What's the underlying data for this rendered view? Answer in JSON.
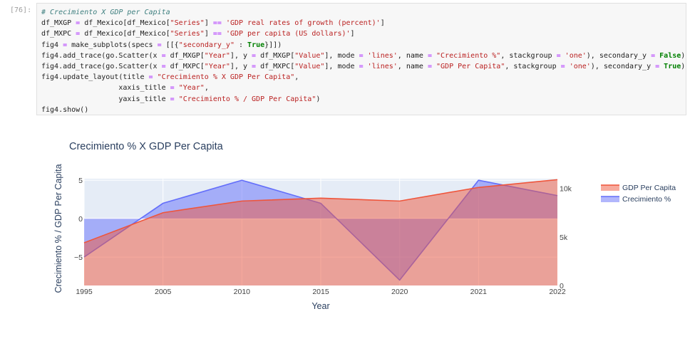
{
  "cell": {
    "prompt": "[76]:",
    "lines": [
      [
        [
          "cm",
          "# Crecimiento X GDP per Capita"
        ]
      ],
      [
        [
          "t",
          "df_MXGP "
        ],
        [
          "o",
          "="
        ],
        [
          "t",
          " df_Mexico[df_Mexico["
        ],
        [
          "s",
          "\"Series\""
        ],
        [
          "t",
          "] "
        ],
        [
          "o",
          "=="
        ],
        [
          "t",
          " "
        ],
        [
          "s",
          "'GDP real rates of growth (percent)'"
        ],
        [
          "t",
          "]"
        ]
      ],
      [
        [
          "t",
          "df_MXPC "
        ],
        [
          "o",
          "="
        ],
        [
          "t",
          " df_Mexico[df_Mexico["
        ],
        [
          "s",
          "\"Series\""
        ],
        [
          "t",
          "] "
        ],
        [
          "o",
          "=="
        ],
        [
          "t",
          " "
        ],
        [
          "s",
          "'GDP per capita (US dollars)'"
        ],
        [
          "t",
          "]"
        ]
      ],
      [
        [
          "t",
          "fig4 "
        ],
        [
          "o",
          "="
        ],
        [
          "t",
          " make_subplots(specs "
        ],
        [
          "o",
          "="
        ],
        [
          "t",
          " [[{"
        ],
        [
          "s",
          "\"secondary_y\""
        ],
        [
          "t",
          " : "
        ],
        [
          "k",
          "True"
        ],
        [
          "t",
          "}]])"
        ]
      ],
      [
        [
          "t",
          "fig4.add_trace(go.Scatter(x "
        ],
        [
          "o",
          "="
        ],
        [
          "t",
          " df_MXGP["
        ],
        [
          "s",
          "\"Year\""
        ],
        [
          "t",
          "], y "
        ],
        [
          "o",
          "="
        ],
        [
          "t",
          " df_MXGP["
        ],
        [
          "s",
          "\"Value\""
        ],
        [
          "t",
          "], mode "
        ],
        [
          "o",
          "="
        ],
        [
          "t",
          " "
        ],
        [
          "s",
          "'lines'"
        ],
        [
          "t",
          ", name "
        ],
        [
          "o",
          "="
        ],
        [
          "t",
          " "
        ],
        [
          "s",
          "\"Crecimiento %\""
        ],
        [
          "t",
          ", stackgroup "
        ],
        [
          "o",
          "="
        ],
        [
          "t",
          " "
        ],
        [
          "s",
          "'one'"
        ],
        [
          "t",
          "), secondary_y "
        ],
        [
          "o",
          "="
        ],
        [
          "t",
          " "
        ],
        [
          "k",
          "False"
        ],
        [
          "t",
          ")"
        ]
      ],
      [
        [
          "t",
          "fig4.add_trace(go.Scatter(x "
        ],
        [
          "o",
          "="
        ],
        [
          "t",
          " df_MXPC["
        ],
        [
          "s",
          "\"Year\""
        ],
        [
          "t",
          "], y "
        ],
        [
          "o",
          "="
        ],
        [
          "t",
          " df_MXPC["
        ],
        [
          "s",
          "\"Value\""
        ],
        [
          "t",
          "], mode "
        ],
        [
          "o",
          "="
        ],
        [
          "t",
          " "
        ],
        [
          "s",
          "'lines'"
        ],
        [
          "t",
          ", name "
        ],
        [
          "o",
          "="
        ],
        [
          "t",
          " "
        ],
        [
          "s",
          "\"GDP Per Capita\""
        ],
        [
          "t",
          ", stackgroup "
        ],
        [
          "o",
          "="
        ],
        [
          "t",
          " "
        ],
        [
          "s",
          "'one'"
        ],
        [
          "t",
          "), secondary_y "
        ],
        [
          "o",
          "="
        ],
        [
          "t",
          " "
        ],
        [
          "k",
          "True"
        ],
        [
          "t",
          ")"
        ]
      ],
      [
        [
          "t",
          "fig4.update_layout(title "
        ],
        [
          "o",
          "="
        ],
        [
          "t",
          " "
        ],
        [
          "s",
          "\"Crecimiento % X GDP Per Capita\""
        ],
        [
          "t",
          ","
        ]
      ],
      [
        [
          "t",
          "                  xaxis_title "
        ],
        [
          "o",
          "="
        ],
        [
          "t",
          " "
        ],
        [
          "s",
          "\"Year\""
        ],
        [
          "t",
          ","
        ]
      ],
      [
        [
          "t",
          "                  yaxis_title "
        ],
        [
          "o",
          "="
        ],
        [
          "t",
          " "
        ],
        [
          "s",
          "\"Crecimiento % / GDP Per Capita\""
        ],
        [
          "t",
          ")"
        ]
      ],
      [
        [
          "t",
          "fig4.show()"
        ]
      ]
    ]
  },
  "colors": {
    "plot_bg": "#e5ecf6",
    "grid": "#ffffff",
    "growth": "#636efa",
    "gdp": "#ef553b",
    "text": "#2a3f5f",
    "tick": "#444444"
  },
  "chart_data": {
    "type": "area",
    "title": "Crecimiento % X GDP Per Capita",
    "xlabel": "Year",
    "ylabel": "Crecimiento % / GDP Per Capita",
    "categories": [
      "1995",
      "2005",
      "2010",
      "2015",
      "2020",
      "2021",
      "2022"
    ],
    "y_left": {
      "range": [
        -8.7,
        5.2
      ],
      "ticks": [
        5,
        0,
        -5
      ],
      "tick_labels": [
        "5",
        "0",
        "−5"
      ]
    },
    "y_right": {
      "range": [
        0,
        11000
      ],
      "ticks": [
        10000,
        5000,
        0
      ],
      "tick_labels": [
        "10k",
        "5k",
        "0"
      ]
    },
    "series": [
      {
        "name": "Crecimiento %",
        "axis": "left",
        "values": [
          -5.0,
          2.0,
          5.0,
          2.0,
          -8.0,
          5.0,
          3.0
        ]
      },
      {
        "name": "GDP Per Capita",
        "axis": "right",
        "values": [
          4400,
          7500,
          8700,
          9000,
          8700,
          10100,
          10900
        ]
      }
    ],
    "legend": {
      "position": "right",
      "entries": [
        "GDP Per Capita",
        "Crecimiento %"
      ]
    },
    "grid": true
  }
}
